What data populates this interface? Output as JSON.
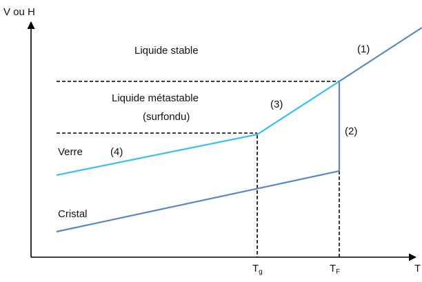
{
  "y_axis_label": "V ou H",
  "x_axis_label": "T",
  "regions": {
    "stable": "Liquide stable",
    "metastable": "Liquide métastable",
    "metastable_note": "(surfondu)",
    "glass": "Verre",
    "crystal": "Cristal"
  },
  "segments": {
    "s1": "(1)",
    "s2": "(2)",
    "s3": "(3)",
    "s4": "(4)"
  },
  "temperatures": {
    "tg": {
      "symbol": "T",
      "subscript": "g"
    },
    "tf": {
      "symbol": "T",
      "subscript": "F"
    }
  }
}
